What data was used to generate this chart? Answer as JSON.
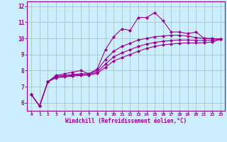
{
  "xlabel": "Windchill (Refroidissement éolien,°C)",
  "background_color": "#cceeff",
  "grid_color": "#aacccc",
  "line_color": "#990099",
  "xlim": [
    -0.5,
    23.5
  ],
  "ylim": [
    5.5,
    12.3
  ],
  "xticks": [
    0,
    1,
    2,
    3,
    4,
    5,
    6,
    7,
    8,
    9,
    10,
    11,
    12,
    13,
    14,
    15,
    16,
    17,
    18,
    19,
    20,
    21,
    22,
    23
  ],
  "yticks": [
    6,
    7,
    8,
    9,
    10,
    11,
    12
  ],
  "line1_x": [
    0,
    1,
    2,
    3,
    4,
    5,
    6,
    7,
    8,
    9,
    10,
    11,
    12,
    13,
    14,
    15,
    16,
    17,
    18,
    19,
    20,
    21,
    22,
    23
  ],
  "line1_y": [
    6.5,
    5.8,
    7.3,
    7.7,
    7.8,
    7.9,
    8.0,
    7.8,
    8.1,
    9.3,
    10.1,
    10.6,
    10.5,
    11.3,
    11.3,
    11.6,
    11.1,
    10.4,
    10.4,
    10.3,
    10.4,
    10.0,
    10.0,
    9.95
  ],
  "line2_x": [
    0,
    1,
    2,
    3,
    4,
    5,
    6,
    7,
    8,
    9,
    10,
    11,
    12,
    13,
    14,
    15,
    16,
    17,
    18,
    19,
    20,
    21,
    22,
    23
  ],
  "line2_y": [
    6.5,
    5.8,
    7.3,
    7.65,
    7.7,
    7.75,
    7.8,
    7.8,
    8.0,
    8.7,
    9.2,
    9.5,
    9.7,
    9.9,
    10.0,
    10.1,
    10.15,
    10.2,
    10.2,
    10.15,
    10.05,
    10.0,
    9.98,
    9.95
  ],
  "line3_x": [
    0,
    1,
    2,
    3,
    4,
    5,
    6,
    7,
    8,
    9,
    10,
    11,
    12,
    13,
    14,
    15,
    16,
    17,
    18,
    19,
    20,
    21,
    22,
    23
  ],
  "line3_y": [
    6.5,
    5.8,
    7.3,
    7.6,
    7.65,
    7.7,
    7.75,
    7.75,
    7.9,
    8.4,
    8.85,
    9.1,
    9.3,
    9.5,
    9.65,
    9.75,
    9.82,
    9.87,
    9.9,
    9.9,
    9.88,
    9.87,
    9.88,
    9.95
  ],
  "line4_x": [
    0,
    1,
    2,
    3,
    4,
    5,
    6,
    7,
    8,
    9,
    10,
    11,
    12,
    13,
    14,
    15,
    16,
    17,
    18,
    19,
    20,
    21,
    22,
    23
  ],
  "line4_y": [
    6.5,
    5.8,
    7.3,
    7.55,
    7.6,
    7.65,
    7.7,
    7.72,
    7.82,
    8.2,
    8.6,
    8.8,
    9.0,
    9.2,
    9.38,
    9.5,
    9.6,
    9.65,
    9.7,
    9.72,
    9.72,
    9.73,
    9.78,
    9.95
  ]
}
